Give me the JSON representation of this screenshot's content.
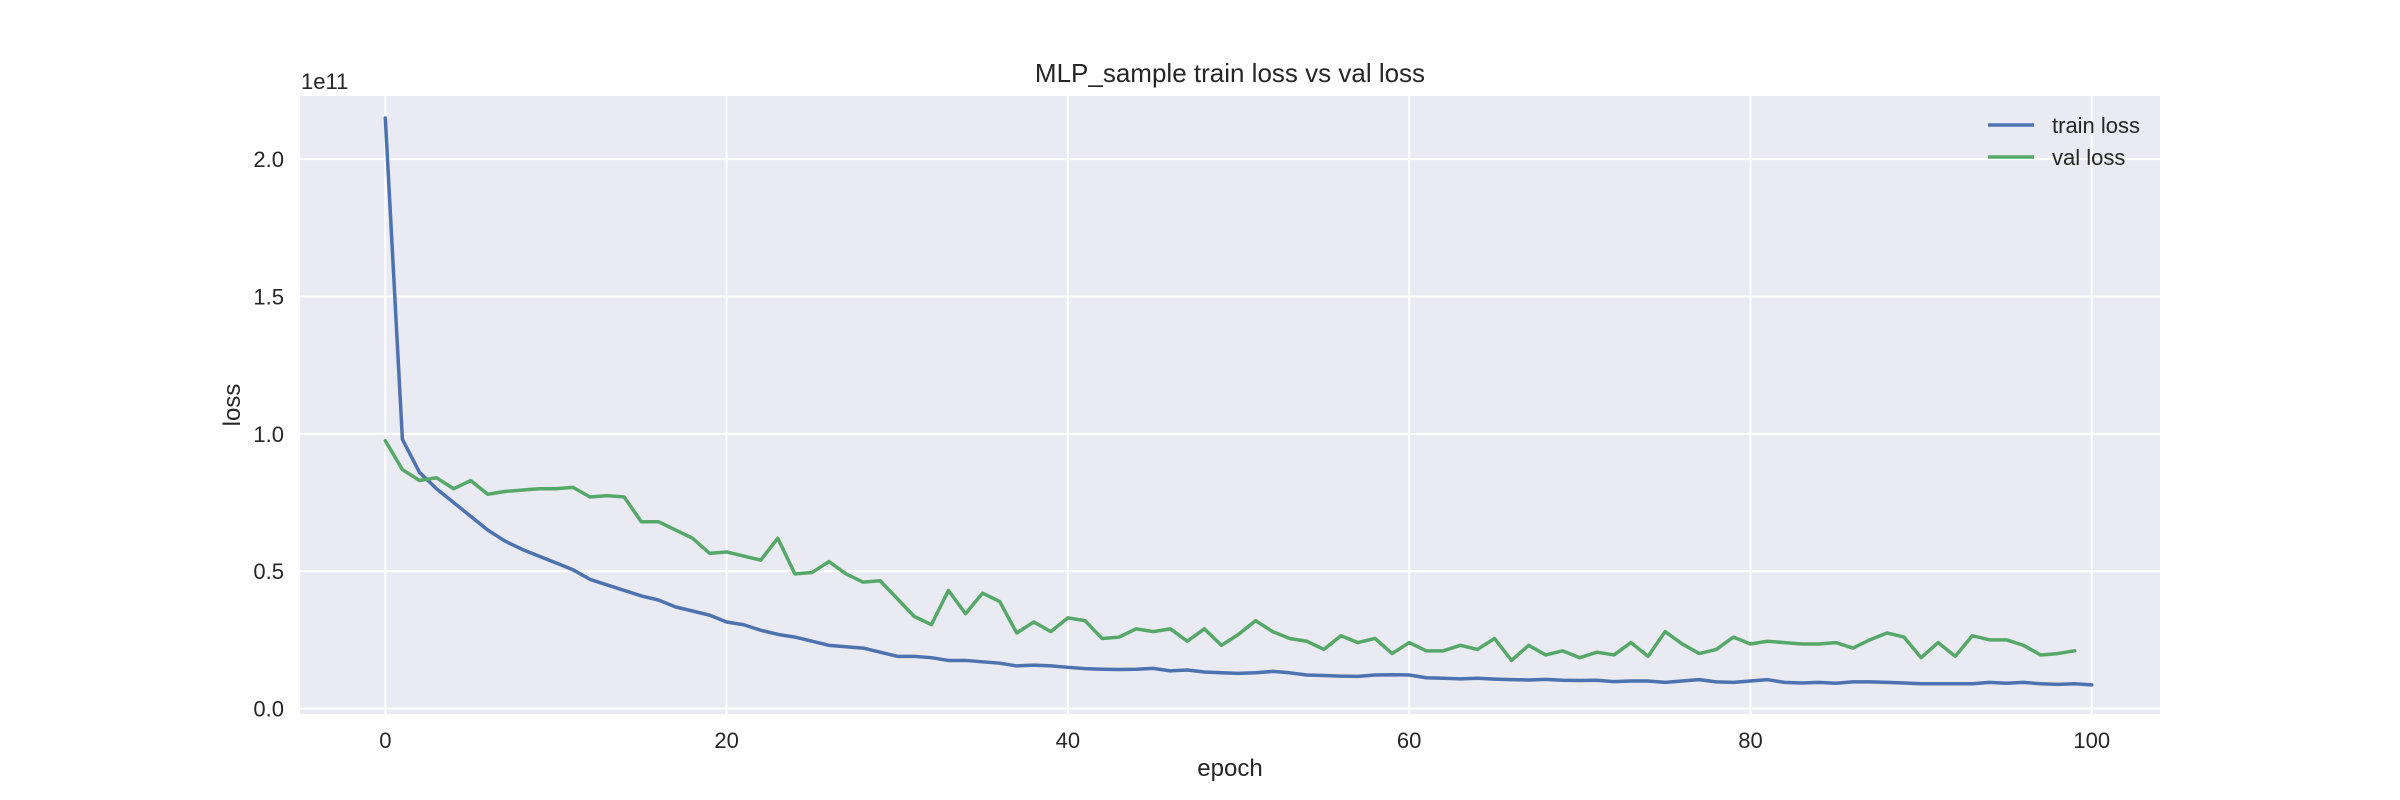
{
  "chart_data": {
    "type": "line",
    "title": "MLP_sample train loss vs val loss",
    "xlabel": "epoch",
    "ylabel": "loss",
    "y_offset_label": "1e11",
    "xlim": [
      -5,
      104
    ],
    "ylim": [
      -0.02,
      2.23
    ],
    "x_ticks": [
      0,
      20,
      40,
      60,
      80,
      100
    ],
    "y_ticks": [
      0.0,
      0.5,
      1.0,
      1.5,
      2.0
    ],
    "x_tick_labels": [
      "0",
      "20",
      "40",
      "60",
      "80",
      "100"
    ],
    "y_tick_labels": [
      "0.0",
      "0.5",
      "1.0",
      "1.5",
      "2.0"
    ],
    "grid": true,
    "legend_position": "top-right",
    "series": [
      {
        "name": "train loss",
        "color": "#4c72b0",
        "values": [
          2.15,
          0.98,
          0.86,
          0.8,
          0.75,
          0.7,
          0.65,
          0.61,
          0.58,
          0.555,
          0.53,
          0.505,
          0.47,
          0.45,
          0.43,
          0.41,
          0.395,
          0.37,
          0.355,
          0.34,
          0.315,
          0.305,
          0.285,
          0.27,
          0.26,
          0.245,
          0.23,
          0.225,
          0.22,
          0.205,
          0.19,
          0.19,
          0.185,
          0.175,
          0.175,
          0.17,
          0.165,
          0.155,
          0.158,
          0.155,
          0.15,
          0.145,
          0.143,
          0.142,
          0.143,
          0.146,
          0.137,
          0.14,
          0.133,
          0.13,
          0.128,
          0.13,
          0.135,
          0.13,
          0.122,
          0.12,
          0.118,
          0.117,
          0.122,
          0.123,
          0.122,
          0.112,
          0.11,
          0.108,
          0.11,
          0.107,
          0.105,
          0.104,
          0.106,
          0.103,
          0.102,
          0.103,
          0.098,
          0.1,
          0.1,
          0.095,
          0.1,
          0.105,
          0.097,
          0.095,
          0.1,
          0.105,
          0.095,
          0.093,
          0.095,
          0.092,
          0.097,
          0.097,
          0.095,
          0.093,
          0.09,
          0.09,
          0.09,
          0.09,
          0.095,
          0.092,
          0.095,
          0.09,
          0.088,
          0.09,
          0.086
        ]
      },
      {
        "name": "val loss",
        "color": "#55a868",
        "values": [
          0.975,
          0.87,
          0.83,
          0.84,
          0.8,
          0.83,
          0.78,
          0.79,
          0.795,
          0.8,
          0.8,
          0.805,
          0.77,
          0.775,
          0.77,
          0.68,
          0.68,
          0.65,
          0.62,
          0.565,
          0.57,
          0.555,
          0.54,
          0.62,
          0.49,
          0.495,
          0.535,
          0.49,
          0.46,
          0.465,
          0.4,
          0.335,
          0.305,
          0.43,
          0.345,
          0.42,
          0.39,
          0.275,
          0.315,
          0.28,
          0.33,
          0.32,
          0.255,
          0.26,
          0.29,
          0.28,
          0.29,
          0.245,
          0.29,
          0.23,
          0.27,
          0.32,
          0.28,
          0.255,
          0.245,
          0.215,
          0.265,
          0.24,
          0.255,
          0.2,
          0.24,
          0.21,
          0.21,
          0.23,
          0.215,
          0.255,
          0.175,
          0.23,
          0.195,
          0.21,
          0.185,
          0.205,
          0.195,
          0.24,
          0.19,
          0.28,
          0.235,
          0.2,
          0.215,
          0.26,
          0.235,
          0.245,
          0.24,
          0.235,
          0.235,
          0.24,
          0.22,
          0.25,
          0.275,
          0.26,
          0.185,
          0.24,
          0.19,
          0.265,
          0.25,
          0.25,
          0.23,
          0.195,
          0.2,
          0.21
        ]
      }
    ]
  }
}
